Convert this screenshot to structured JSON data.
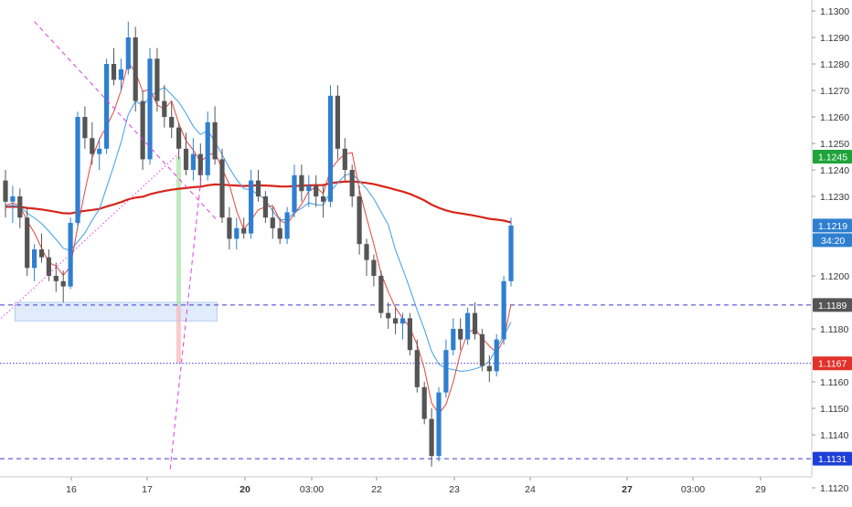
{
  "chart_data": {
    "type": "candlestick",
    "title": "",
    "xlabel": "",
    "ylabel": "",
    "ylim": [
      1.1115,
      1.1305
    ],
    "y_ticks": [
      "1.1300",
      "1.1290",
      "1.1280",
      "1.1270",
      "1.1260",
      "1.1250",
      "1.1240",
      "1.1230",
      "1.1200",
      "1.1180",
      "1.1160",
      "1.1150",
      "1.1140",
      "1.1120"
    ],
    "x_ticks": [
      "16",
      "17",
      "20",
      "03:00",
      "22",
      "23",
      "24",
      "27",
      "03:00",
      "29"
    ],
    "grid": false,
    "colors": {
      "up": "#2f7fd1",
      "down": "#555555",
      "ma_fast": "#e8433a",
      "ma_mid": "#3d9ee6",
      "ma_slow": "#d8251a",
      "trendline": "#e23be3",
      "level": "#3a3ad8",
      "zone_fill": "#dbe8fb",
      "target_fill": "#a6dfa4",
      "stop_fill": "#f6b7b7"
    },
    "candles": [
      [
        1.1236,
        1.124,
        1.1222,
        1.1228
      ],
      [
        1.1228,
        1.1234,
        1.122,
        1.123
      ],
      [
        1.123,
        1.1233,
        1.1218,
        1.1222
      ],
      [
        1.1222,
        1.1226,
        1.12,
        1.1203
      ],
      [
        1.1203,
        1.1212,
        1.1198,
        1.121
      ],
      [
        1.121,
        1.1216,
        1.1205,
        1.1207
      ],
      [
        1.1207,
        1.121,
        1.1198,
        1.12
      ],
      [
        1.12,
        1.1205,
        1.1194,
        1.1198
      ],
      [
        1.1198,
        1.1202,
        1.119,
        1.1196
      ],
      [
        1.1196,
        1.1222,
        1.1195,
        1.122
      ],
      [
        1.122,
        1.1262,
        1.1218,
        1.126
      ],
      [
        1.126,
        1.1264,
        1.1248,
        1.1252
      ],
      [
        1.1252,
        1.1258,
        1.1242,
        1.1246
      ],
      [
        1.1246,
        1.1252,
        1.124,
        1.1248
      ],
      [
        1.1248,
        1.1282,
        1.1246,
        1.128
      ],
      [
        1.128,
        1.1286,
        1.1272,
        1.1274
      ],
      [
        1.1274,
        1.1282,
        1.127,
        1.1278
      ],
      [
        1.1278,
        1.1296,
        1.1276,
        1.129
      ],
      [
        1.129,
        1.1294,
        1.1262,
        1.1266
      ],
      [
        1.1266,
        1.127,
        1.124,
        1.1244
      ],
      [
        1.1244,
        1.1286,
        1.1242,
        1.1282
      ],
      [
        1.1282,
        1.1286,
        1.1262,
        1.1266
      ],
      [
        1.1266,
        1.1272,
        1.1256,
        1.126
      ],
      [
        1.126,
        1.1266,
        1.1252,
        1.1256
      ],
      [
        1.1256,
        1.1258,
        1.1244,
        1.1248
      ],
      [
        1.1248,
        1.1254,
        1.1238,
        1.124
      ],
      [
        1.124,
        1.1252,
        1.1236,
        1.1246
      ],
      [
        1.1246,
        1.125,
        1.1234,
        1.1238
      ],
      [
        1.1238,
        1.1262,
        1.1236,
        1.1258
      ],
      [
        1.1258,
        1.1264,
        1.1242,
        1.1244
      ],
      [
        1.1244,
        1.1248,
        1.122,
        1.1222
      ],
      [
        1.1222,
        1.1226,
        1.121,
        1.1214
      ],
      [
        1.1214,
        1.1222,
        1.121,
        1.1218
      ],
      [
        1.1218,
        1.1222,
        1.1214,
        1.1216
      ],
      [
        1.1216,
        1.124,
        1.1214,
        1.1236
      ],
      [
        1.1236,
        1.124,
        1.1228,
        1.123
      ],
      [
        1.123,
        1.1232,
        1.122,
        1.1222
      ],
      [
        1.1222,
        1.1226,
        1.1214,
        1.1218
      ],
      [
        1.1218,
        1.1222,
        1.1212,
        1.1214
      ],
      [
        1.1214,
        1.1226,
        1.1212,
        1.1224
      ],
      [
        1.1224,
        1.1242,
        1.1222,
        1.1238
      ],
      [
        1.1238,
        1.1242,
        1.1228,
        1.1232
      ],
      [
        1.1232,
        1.1238,
        1.1226,
        1.1234
      ],
      [
        1.1234,
        1.1238,
        1.1226,
        1.123
      ],
      [
        1.123,
        1.1234,
        1.1222,
        1.1228
      ],
      [
        1.1228,
        1.1272,
        1.1226,
        1.1268
      ],
      [
        1.1268,
        1.1272,
        1.1244,
        1.1248
      ],
      [
        1.1248,
        1.1252,
        1.1236,
        1.124
      ],
      [
        1.124,
        1.1242,
        1.1226,
        1.123
      ],
      [
        1.123,
        1.1234,
        1.1208,
        1.1212
      ],
      [
        1.1212,
        1.1214,
        1.12,
        1.1206
      ],
      [
        1.1206,
        1.1208,
        1.1196,
        1.12
      ],
      [
        1.12,
        1.1202,
        1.1184,
        1.1186
      ],
      [
        1.1186,
        1.119,
        1.118,
        1.1184
      ],
      [
        1.1184,
        1.1188,
        1.1178,
        1.1182
      ],
      [
        1.1182,
        1.1186,
        1.1176,
        1.1184
      ],
      [
        1.1184,
        1.1186,
        1.117,
        1.1172
      ],
      [
        1.1172,
        1.1176,
        1.1156,
        1.1158
      ],
      [
        1.1158,
        1.116,
        1.1144,
        1.1146
      ],
      [
        1.1146,
        1.115,
        1.1128,
        1.1132
      ],
      [
        1.1132,
        1.1158,
        1.113,
        1.1156
      ],
      [
        1.1156,
        1.1176,
        1.1154,
        1.1172
      ],
      [
        1.1172,
        1.1184,
        1.117,
        1.118
      ],
      [
        1.118,
        1.1184,
        1.1172,
        1.1176
      ],
      [
        1.1176,
        1.1188,
        1.1174,
        1.1186
      ],
      [
        1.1186,
        1.119,
        1.1176,
        1.1178
      ],
      [
        1.1178,
        1.118,
        1.1164,
        1.1166
      ],
      [
        1.1166,
        1.117,
        1.116,
        1.1164
      ],
      [
        1.1164,
        1.1178,
        1.1162,
        1.1176
      ],
      [
        1.1176,
        1.12,
        1.1174,
        1.1198
      ],
      [
        1.1198,
        1.1222,
        1.1196,
        1.1219
      ]
    ],
    "trendlines": [
      {
        "from": [
          4,
          1.1296
        ],
        "to": [
          29.3,
          1.1221
        ]
      },
      {
        "from": [
          -0.6,
          1.1184
        ],
        "to": [
          24.3,
          1.1247
        ]
      },
      {
        "from": [
          22.8,
          1.1127
        ],
        "to": [
          27.2,
          1.124
        ]
      }
    ],
    "levels": [
      {
        "value": 1.1189,
        "label": "1.1189",
        "style": "dashed",
        "badge": "#555555"
      },
      {
        "value": 1.1167,
        "label": "1.1167",
        "style": "dotted",
        "badge": "#e0322b"
      },
      {
        "value": 1.1131,
        "label": "1.1131",
        "style": "dashed",
        "badge": "#1e3fd6"
      }
    ],
    "zone": {
      "from_x": 1.3,
      "to_x": 29.3,
      "y_top": 1.119,
      "y_bottom": 1.1183
    },
    "position": {
      "x_start": 23.65,
      "x_end": 24.3,
      "entry": 1.1189,
      "target": 1.1245,
      "stop": 1.1167
    },
    "price_labels": [
      {
        "value": 1.1245,
        "label": "1.1245",
        "color": "#1fa33a"
      },
      {
        "value": 1.1219,
        "label": "1.1219",
        "color": "#2f7fd1"
      }
    ],
    "countdown": "34:20"
  }
}
